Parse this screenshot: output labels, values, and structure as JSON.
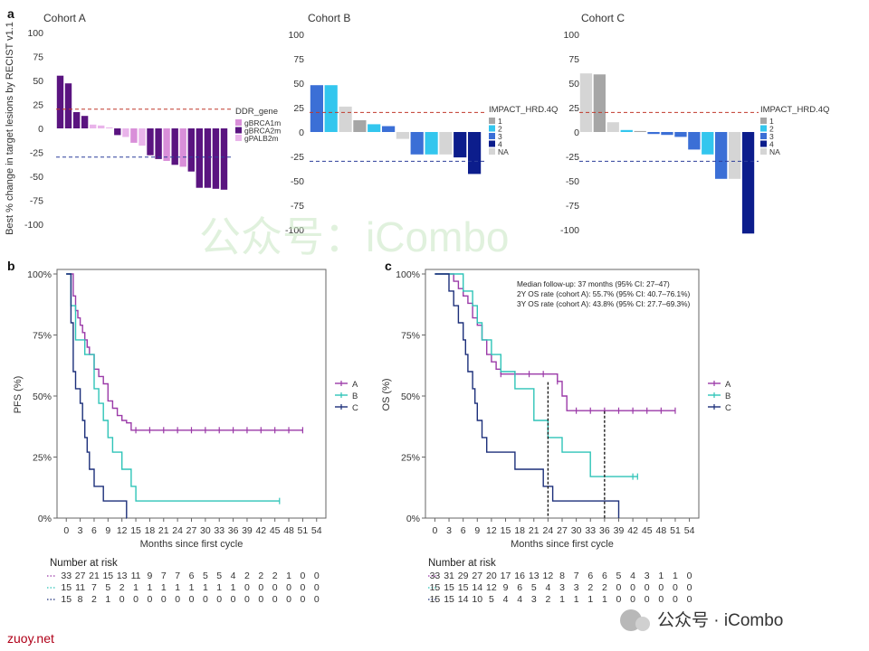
{
  "panels": {
    "a": "a",
    "b": "b",
    "c": "c"
  },
  "watermark": "公众号：iCombo",
  "footer_left": "zuoy.net",
  "footer_logo": "公众号 · iCombo",
  "chart_data": [
    {
      "type": "bar",
      "panel": "a",
      "title": "Cohort A",
      "ylabel": "Best % change in target lesions by RECIST v1.1",
      "ylim": [
        -100,
        100
      ],
      "yticks": [
        100,
        75,
        50,
        25,
        0,
        -25,
        -50,
        -75,
        -100
      ],
      "ref_lines": [
        20,
        -30
      ],
      "legend_title": "DDR_gene",
      "legend": [
        {
          "name": "gBRCA1m",
          "color": "#d98fd9"
        },
        {
          "name": "gBRCA2m",
          "color": "#5a1480"
        },
        {
          "name": "gPALB2m",
          "color": "#e9b4ea"
        }
      ],
      "values": [
        55,
        47,
        17,
        13,
        4,
        3,
        1,
        -7,
        -9,
        -15,
        -18,
        -28,
        -32,
        -34,
        -38,
        -40,
        -45,
        -62,
        -62,
        -63,
        -64
      ],
      "groups": [
        "gBRCA2m",
        "gBRCA2m",
        "gBRCA2m",
        "gBRCA2m",
        "gPALB2m",
        "gPALB2m",
        "gPALB2m",
        "gBRCA2m",
        "gPALB2m",
        "gBRCA1m",
        "gPALB2m",
        "gBRCA2m",
        "gBRCA2m",
        "gBRCA1m",
        "gBRCA2m",
        "gBRCA1m",
        "gBRCA2m",
        "gBRCA2m",
        "gBRCA2m",
        "gBRCA2m",
        "gBRCA2m"
      ]
    },
    {
      "type": "bar",
      "panel": "a",
      "title": "Cohort B",
      "ylim": [
        -100,
        100
      ],
      "yticks": [
        100,
        75,
        50,
        25,
        0,
        -25,
        -50,
        -75,
        -100
      ],
      "ref_lines": [
        20,
        -30
      ],
      "legend_title": "IMPACT_HRD.4Q",
      "legend": [
        {
          "name": "1",
          "color": "#a6a6a6"
        },
        {
          "name": "2",
          "color": "#33c6ee"
        },
        {
          "name": "3",
          "color": "#3b6fd6"
        },
        {
          "name": "4",
          "color": "#0c1d8c"
        },
        {
          "name": "NA",
          "color": "#d5d5d5"
        }
      ],
      "values": [
        48,
        48,
        26,
        12,
        8,
        6,
        -7,
        -23,
        -23,
        -23,
        -26,
        -43
      ],
      "groups": [
        "3",
        "2",
        "NA",
        "1",
        "2",
        "3",
        "NA",
        "3",
        "2",
        "NA",
        "4",
        "4"
      ]
    },
    {
      "type": "bar",
      "panel": "a",
      "title": "Cohort C",
      "ylim": [
        -100,
        100
      ],
      "yticks": [
        100,
        75,
        50,
        25,
        0,
        -25,
        -50,
        -75,
        -100
      ],
      "ref_lines": [
        20,
        -30
      ],
      "legend_title": "IMPACT_HRD.4Q",
      "legend": [
        {
          "name": "1",
          "color": "#a6a6a6"
        },
        {
          "name": "2",
          "color": "#33c6ee"
        },
        {
          "name": "3",
          "color": "#3b6fd6"
        },
        {
          "name": "4",
          "color": "#0c1d8c"
        },
        {
          "name": "NA",
          "color": "#d5d5d5"
        }
      ],
      "values": [
        60,
        59,
        10,
        2,
        1,
        -2,
        -3,
        -5,
        -18,
        -23,
        -48,
        -48,
        -104
      ],
      "groups": [
        "NA",
        "1",
        "NA",
        "2",
        "1",
        "3",
        "3",
        "3",
        "3",
        "2",
        "3",
        "NA",
        "4"
      ]
    },
    {
      "type": "line",
      "panel": "b",
      "xlabel": "Months since first cycle",
      "ylabel": "PFS (%)",
      "xlim": [
        -2,
        56
      ],
      "ylim": [
        0,
        100
      ],
      "xticks": [
        0,
        3,
        6,
        9,
        12,
        15,
        18,
        21,
        24,
        27,
        30,
        33,
        36,
        39,
        42,
        45,
        48,
        51,
        54
      ],
      "yticks": [
        {
          "v": 0,
          "t": "0%"
        },
        {
          "v": 25,
          "t": "25%"
        },
        {
          "v": 50,
          "t": "50%"
        },
        {
          "v": 75,
          "t": "75%"
        },
        {
          "v": 100,
          "t": "100%"
        }
      ],
      "series": [
        {
          "name": "A",
          "color": "#9b3aa8",
          "x": [
            0,
            1.5,
            2,
            2.5,
            3,
            3.5,
            4,
            4.5,
            5,
            6,
            7,
            8,
            9,
            10,
            11,
            12,
            13,
            14,
            51
          ],
          "y": [
            100,
            91,
            85,
            82,
            79,
            76,
            73,
            70,
            67,
            61,
            58,
            55,
            48,
            45,
            42,
            40,
            39,
            36,
            36
          ],
          "censor_x": [
            15,
            18,
            21,
            24,
            27,
            30,
            33,
            36,
            39,
            42,
            45,
            48,
            51
          ],
          "censor_y": 36
        },
        {
          "name": "B",
          "color": "#2fc4b8",
          "x": [
            0,
            1,
            2,
            4,
            6,
            7,
            8,
            9,
            10,
            12,
            14,
            15,
            46
          ],
          "y": [
            100,
            87,
            73,
            67,
            53,
            47,
            40,
            33,
            27,
            20,
            13,
            7,
            7
          ],
          "censor_x": [
            46
          ],
          "censor_y": 7
        },
        {
          "name": "C",
          "color": "#1c2f7a",
          "x": [
            0,
            1,
            1.5,
            2,
            3,
            3.5,
            4,
            4.5,
            5,
            6,
            8,
            10,
            13,
            13.01
          ],
          "y": [
            100,
            80,
            60,
            53,
            47,
            40,
            33,
            27,
            20,
            13,
            7,
            7,
            0,
            0
          ],
          "censor_x": [],
          "censor_y": 0
        }
      ],
      "risk_title": "Number at risk",
      "risk": [
        {
          "name": "A",
          "values": [
            33,
            27,
            21,
            15,
            13,
            11,
            9,
            7,
            7,
            6,
            5,
            5,
            4,
            2,
            2,
            2,
            1,
            0,
            0
          ]
        },
        {
          "name": "B",
          "values": [
            15,
            11,
            7,
            5,
            2,
            1,
            1,
            1,
            1,
            1,
            1,
            1,
            1,
            0,
            0,
            0,
            0,
            0,
            0
          ]
        },
        {
          "name": "C",
          "values": [
            15,
            8,
            2,
            1,
            0,
            0,
            0,
            0,
            0,
            0,
            0,
            0,
            0,
            0,
            0,
            0,
            0,
            0,
            0
          ]
        }
      ]
    },
    {
      "type": "line",
      "panel": "c",
      "xlabel": "Months since first cycle",
      "ylabel": "OS (%)",
      "xlim": [
        -2,
        56
      ],
      "ylim": [
        0,
        100
      ],
      "xticks": [
        0,
        3,
        6,
        9,
        12,
        15,
        18,
        21,
        24,
        27,
        30,
        33,
        36,
        39,
        42,
        45,
        48,
        51,
        54
      ],
      "yticks": [
        {
          "v": 0,
          "t": "0%"
        },
        {
          "v": 25,
          "t": "25%"
        },
        {
          "v": 50,
          "t": "50%"
        },
        {
          "v": 75,
          "t": "75%"
        },
        {
          "v": 100,
          "t": "100%"
        }
      ],
      "annotations": [
        "Median follow-up: 37 months (95% CI: 27–47)",
        "2Y OS rate (cohort A): 55.7% (95% CI: 40.7–76.1%)",
        "3Y OS rate (cohort A): 43.8% (95% CI: 27.7–69.3%)"
      ],
      "vlines": [
        {
          "x": 24,
          "y": 55.7
        },
        {
          "x": 36,
          "y": 43.8
        }
      ],
      "series": [
        {
          "name": "A",
          "color": "#9b3aa8",
          "x": [
            0,
            4,
            5,
            6,
            7,
            8,
            9,
            10,
            11,
            12,
            13,
            14,
            26,
            27,
            28,
            51
          ],
          "y": [
            100,
            97,
            94,
            91,
            88,
            82,
            79,
            73,
            67,
            64,
            61,
            59,
            56,
            50,
            44,
            44
          ],
          "censor_x": [
            14,
            17,
            20,
            23,
            26,
            30,
            33,
            36,
            39,
            42,
            45,
            48,
            51
          ],
          "censor_y_auto": true
        },
        {
          "name": "B",
          "color": "#2fc4b8",
          "x": [
            0,
            6,
            8,
            9,
            10,
            12,
            14,
            17,
            21,
            24,
            27,
            33,
            43
          ],
          "y": [
            100,
            93,
            87,
            80,
            73,
            67,
            60,
            53,
            40,
            33,
            27,
            17,
            17
          ],
          "censor_x": [
            42,
            43
          ],
          "censor_y": 17
        },
        {
          "name": "C",
          "color": "#1c2f7a",
          "x": [
            0,
            3,
            4,
            5,
            6,
            6.5,
            7,
            8,
            8.5,
            9,
            10,
            11,
            14,
            17,
            20,
            23,
            25,
            39
          ],
          "y": [
            100,
            93,
            87,
            80,
            73,
            67,
            60,
            53,
            47,
            40,
            33,
            27,
            27,
            20,
            20,
            13,
            7,
            0
          ],
          "censor_x": [],
          "censor_y": 0
        }
      ],
      "risk_title": "Number at risk",
      "risk": [
        {
          "name": "A",
          "values": [
            33,
            31,
            29,
            27,
            20,
            17,
            16,
            13,
            12,
            8,
            7,
            6,
            6,
            5,
            4,
            3,
            1,
            1,
            0
          ]
        },
        {
          "name": "B",
          "values": [
            15,
            15,
            15,
            14,
            12,
            9,
            6,
            5,
            4,
            3,
            3,
            2,
            2,
            0,
            0,
            0,
            0,
            0,
            0
          ]
        },
        {
          "name": "C",
          "values": [
            15,
            15,
            14,
            10,
            5,
            4,
            4,
            3,
            2,
            1,
            1,
            1,
            1,
            0,
            0,
            0,
            0,
            0,
            0
          ]
        }
      ]
    }
  ]
}
